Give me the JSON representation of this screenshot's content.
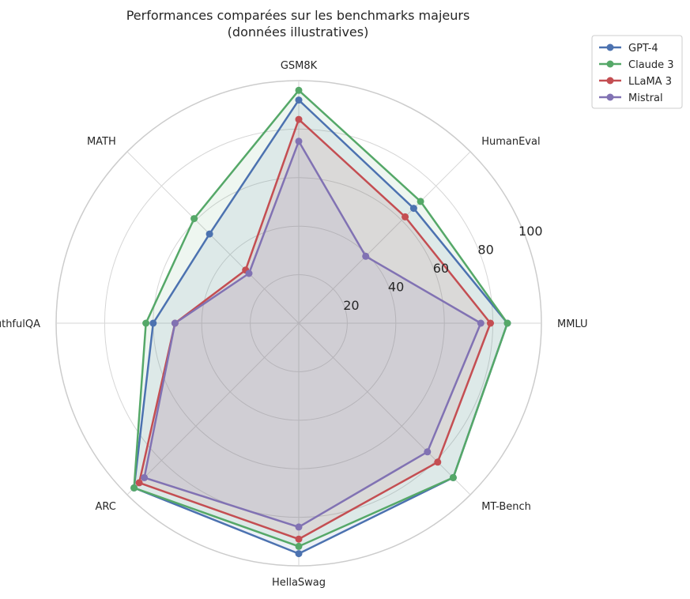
{
  "chart_data": {
    "type": "radar",
    "title": "Performances comparées sur les benchmarks majeurs",
    "subtitle": "(données illustratives)",
    "categories": [
      "MMLU",
      "HumanEval",
      "GSM8K",
      "MATH",
      "TruthfulQA",
      "ARC",
      "HellaSwag",
      "MT-Bench"
    ],
    "rlim": [
      0,
      100
    ],
    "r_ticks": [
      20,
      40,
      60,
      80,
      100
    ],
    "grid": true,
    "legend": "top-right",
    "series": [
      {
        "name": "GPT-4",
        "color": "#4c72b0",
        "values": [
          86,
          67,
          92,
          52,
          60,
          96,
          95,
          90
        ]
      },
      {
        "name": "Claude 3",
        "color": "#55a868",
        "values": [
          86,
          71,
          96,
          61,
          63,
          96,
          92,
          90
        ]
      },
      {
        "name": "LLaMA 3",
        "color": "#c44e52",
        "values": [
          79,
          62,
          84,
          31,
          51,
          93,
          89,
          81
        ]
      },
      {
        "name": "Mistral",
        "color": "#8172b3",
        "values": [
          75,
          39,
          75,
          29,
          51,
          90,
          84,
          75
        ]
      }
    ]
  }
}
